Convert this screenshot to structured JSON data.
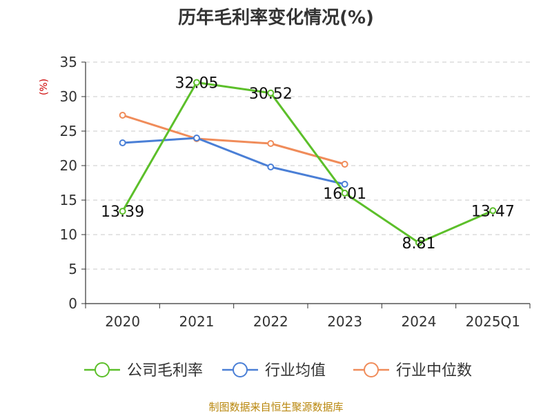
{
  "chart_data": {
    "type": "line",
    "title": "历年毛利率变化情况(%)",
    "ylabel": "(%)",
    "xlabel": "",
    "categories": [
      "2020",
      "2021",
      "2022",
      "2023",
      "2024",
      "2025Q1"
    ],
    "ylim": [
      0,
      35
    ],
    "yticks": [
      "0",
      "5",
      "10",
      "15",
      "20",
      "25",
      "30",
      "35"
    ],
    "grid": true,
    "legend_position": "bottom",
    "series": [
      {
        "name": "公司毛利率",
        "color": "#5cbf2a",
        "values": [
          13.39,
          32.05,
          30.52,
          16.01,
          8.81,
          13.47
        ],
        "labels": [
          "13.39",
          "32.05",
          "30.52",
          "16.01",
          "8.81",
          "13.47"
        ]
      },
      {
        "name": "行业均值",
        "color": "#4a7fd6",
        "values": [
          23.3,
          24.0,
          19.8,
          17.3,
          null,
          null
        ]
      },
      {
        "name": "行业中位数",
        "color": "#f08c5a",
        "values": [
          27.3,
          23.9,
          23.2,
          20.2,
          null,
          null
        ]
      }
    ]
  },
  "source": "制图数据来自恒生聚源数据库"
}
